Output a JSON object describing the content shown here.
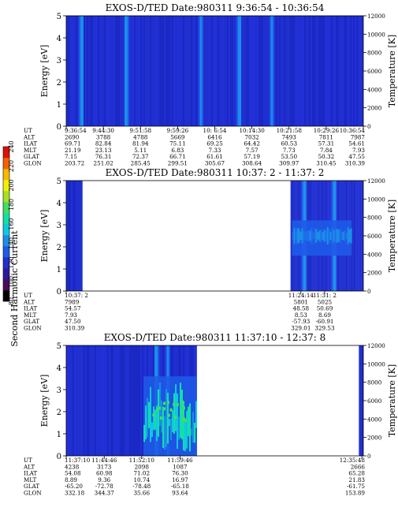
{
  "colorbar": {
    "label": "Second Harmonic Current",
    "ticks": [
      "80",
      "100",
      "120",
      "140",
      "160",
      "180",
      "200",
      "220",
      "240"
    ],
    "colors": [
      "#000000",
      "#4a0a5c",
      "#2a1a9a",
      "#1f2fd0",
      "#1f5ae8",
      "#1a8fe8",
      "#10c8e0",
      "#12e0a8",
      "#40e060",
      "#a8e020",
      "#f0f000",
      "#f8b800",
      "#f86000",
      "#e01000"
    ]
  },
  "panels": [
    {
      "title": "EXOS-D/TED   Date:980311  9:36:54 - 10:36:54",
      "ylabel": "Energy [eV]",
      "y2label": "Temperature [K]",
      "ephem_labels": [
        "UT",
        "ALT",
        "ILAT",
        "MLT",
        "GLAT",
        "GLON"
      ],
      "ephem_cols": [
        [
          "9:36:54",
          "2690",
          "69.71",
          "21.19",
          "7.15",
          "203.72"
        ],
        [
          "9:44:30",
          "3788",
          "82.84",
          "23.13",
          "76.31",
          "251.02"
        ],
        [
          "9:51:58",
          "4788",
          "81.94",
          "5.11",
          "72.37",
          "285.45"
        ],
        [
          "9:59:26",
          "5669",
          "75.11",
          "6.83",
          "66.71",
          "299.51"
        ],
        [
          "10: 6:54",
          "6416",
          "69.25",
          "7.33",
          "61.61",
          "305.67"
        ],
        [
          "10:14:30",
          "7032",
          "64.42",
          "7.57",
          "57.19",
          "308.64"
        ],
        [
          "10:21:58",
          "7493",
          "60.53",
          "7.73",
          "53.50",
          "309.97"
        ],
        [
          "10:29:26",
          "7811",
          "57.31",
          "7.84",
          "50.32",
          "310.45"
        ],
        [
          "10:36:54",
          "7987",
          "54.61",
          "7.93",
          "47.55",
          "310.39"
        ]
      ]
    },
    {
      "title": "EXOS-D/TED   Date:980311  10:37: 2 - 11:37: 2",
      "ylabel": "Energy [eV]",
      "y2label": "Temperature [K]",
      "ephem_labels": [
        "UT",
        "ALT",
        "ILAT",
        "MLT",
        "GLAT",
        "GLON"
      ],
      "ephem_cols": [
        [
          "10:37: 2",
          "7989",
          "54.57",
          "7.93",
          "47.50",
          "310.39"
        ],
        [
          "11:24:14",
          "5801",
          "48.58",
          "8.53",
          "-57.93",
          "329.01"
        ],
        [
          "11:31: 2",
          "5025",
          "50.69",
          "8.69",
          "-60.91",
          "329.53"
        ]
      ]
    },
    {
      "title": "EXOS-D/TED   Date:980311  11:37:10 - 12:37: 8",
      "ylabel": "Energy [eV]",
      "y2label": "Temperature [K]",
      "ephem_labels": [
        "UT",
        "ALT",
        "ILAT",
        "MLT",
        "GLAT",
        "GLON"
      ],
      "ephem_cols": [
        [
          "11:37:10",
          "4238",
          "54.08",
          "8.89",
          "-65.20",
          "332.18"
        ],
        [
          "11:44:46",
          "3173",
          "60.98",
          "9.36",
          "-72.78",
          "344.37"
        ],
        [
          "11:52:10",
          "2098",
          "71.02",
          "10.74",
          "-78.48",
          "35.66"
        ],
        [
          "11:59:46",
          "1087",
          "76.30",
          "16.97",
          "-65.18",
          "93.64"
        ],
        [
          "12:35:48",
          "2666",
          "65.28",
          "21.83",
          "-61.75",
          "153.89"
        ]
      ]
    }
  ],
  "chart_data": [
    {
      "type": "heatmap",
      "title": "EXOS-D/TED   Date:980311  9:36:54 - 10:36:54",
      "xlabel": "",
      "ylabel": "Energy [eV]",
      "y2label": "Temperature [K]",
      "ylim": [
        0,
        5
      ],
      "y2lim": [
        0,
        12000
      ],
      "yticks": [
        0,
        1,
        2,
        3,
        4,
        5
      ],
      "y2ticks": [
        0,
        2000,
        4000,
        6000,
        8000,
        10000,
        12000
      ],
      "xticks": [
        "9:36:54",
        "9:44:30",
        "9:51:58",
        "9:59:26",
        "10: 6:54",
        "10:14:30",
        "10:21:58",
        "10:29:26",
        "10:36:54"
      ],
      "data_coverage": [
        [
          0,
          1
        ]
      ],
      "bright_bands": [
        0.05,
        0.2,
        0.45,
        0.58,
        0.69
      ]
    },
    {
      "type": "heatmap",
      "title": "EXOS-D/TED   Date:980311  10:37: 2 - 11:37: 2",
      "xlabel": "",
      "ylabel": "Energy [eV]",
      "y2label": "Temperature [K]",
      "ylim": [
        0,
        5
      ],
      "y2lim": [
        0,
        12000
      ],
      "yticks": [
        0,
        1,
        2,
        3,
        4,
        5
      ],
      "y2ticks": [
        0,
        2000,
        4000,
        6000,
        8000,
        10000,
        12000
      ],
      "xticks": [
        "10:37: 2",
        "11:24:14",
        "11:31: 2"
      ],
      "data_coverage": [
        [
          0,
          0.055
        ],
        [
          0.755,
          1
        ]
      ],
      "bright_bands": [
        0.8,
        0.9
      ]
    },
    {
      "type": "heatmap",
      "title": "EXOS-D/TED   Date:980311  11:37:10 - 12:37: 8",
      "xlabel": "",
      "ylabel": "Energy [eV]",
      "y2label": "Temperature [K]",
      "ylim": [
        0,
        5
      ],
      "y2lim": [
        0,
        12000
      ],
      "yticks": [
        0,
        1,
        2,
        3,
        4,
        5
      ],
      "y2ticks": [
        0,
        2000,
        4000,
        6000,
        8000,
        10000,
        12000
      ],
      "xticks": [
        "11:37:10",
        "11:44:46",
        "11:52:10",
        "11:59:46",
        "12:35:48"
      ],
      "data_coverage": [
        [
          0,
          0.44
        ],
        [
          0.985,
          1
        ]
      ],
      "bright_bands": [
        0.3,
        0.34
      ]
    }
  ]
}
